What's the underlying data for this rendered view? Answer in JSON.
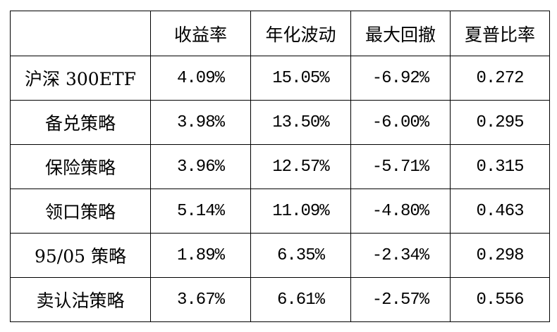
{
  "table": {
    "headers": [
      "",
      "收益率",
      "年化波动",
      "最大回撤",
      "夏普比率"
    ],
    "rows": [
      [
        "沪深 300ETF",
        "4.09%",
        "15.05%",
        "-6.92%",
        "0.272"
      ],
      [
        "备兑策略",
        "3.98%",
        "13.50%",
        "-6.00%",
        "0.295"
      ],
      [
        "保险策略",
        "3.96%",
        "12.57%",
        "-5.71%",
        "0.315"
      ],
      [
        "领口策略",
        "5.14%",
        "11.09%",
        "-4.80%",
        "0.463"
      ],
      [
        "95/05 策略",
        "1.89%",
        "6.35%",
        "-2.34%",
        "0.298"
      ],
      [
        "卖认沽策略",
        "3.67%",
        "6.61%",
        "-2.57%",
        "0.556"
      ]
    ]
  }
}
